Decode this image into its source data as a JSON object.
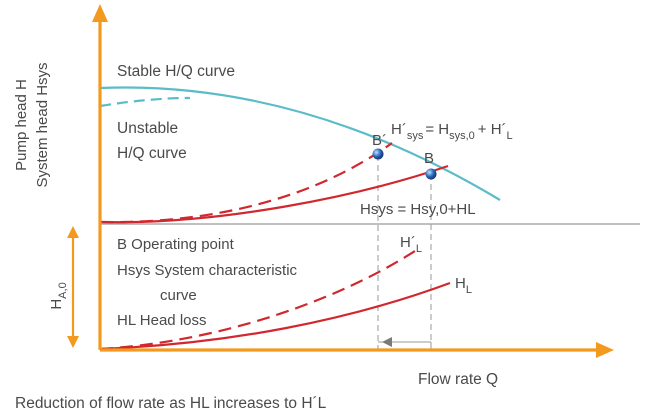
{
  "axes": {
    "y_label_line1": "Pump head H",
    "y_label_line2": "System head Hsys",
    "x_label": "Flow rate Q"
  },
  "ha0": {
    "base": "H",
    "sub": "A,0"
  },
  "curves": {
    "stable": "Stable H/Q curve",
    "unstable_line1": "Unstable",
    "unstable_line2": "H/Q curve"
  },
  "points": {
    "b": "B",
    "b_prime": "B´"
  },
  "equations": {
    "hsys_prime": {
      "lhs": "H´",
      "lhs_sub": "sys",
      "eq": "= H",
      "rhs_sub": "sys,0",
      "plus": "+ H´",
      "plus_sub": "L"
    },
    "hsys": "Hsys = Hsy,0+HL"
  },
  "legend": {
    "b": "B   Operating point",
    "hsys_line1": "Hsys System characteristic",
    "hsys_line2": "curve",
    "hl": "HL Head loss"
  },
  "loss_labels": {
    "hl_prime": {
      "base": "H´",
      "sub": "L"
    },
    "hl": {
      "base": "H",
      "sub": "L"
    }
  },
  "caption": "Reduction of flow rate as HL increases to H´L",
  "colors": {
    "axis": "#f39a1e",
    "pump_curve": "#5bbcc9",
    "system_curve": "#d0282e",
    "helper": "#9a9a9a",
    "text": "#4a4a4a",
    "point": "#2a67b8"
  }
}
